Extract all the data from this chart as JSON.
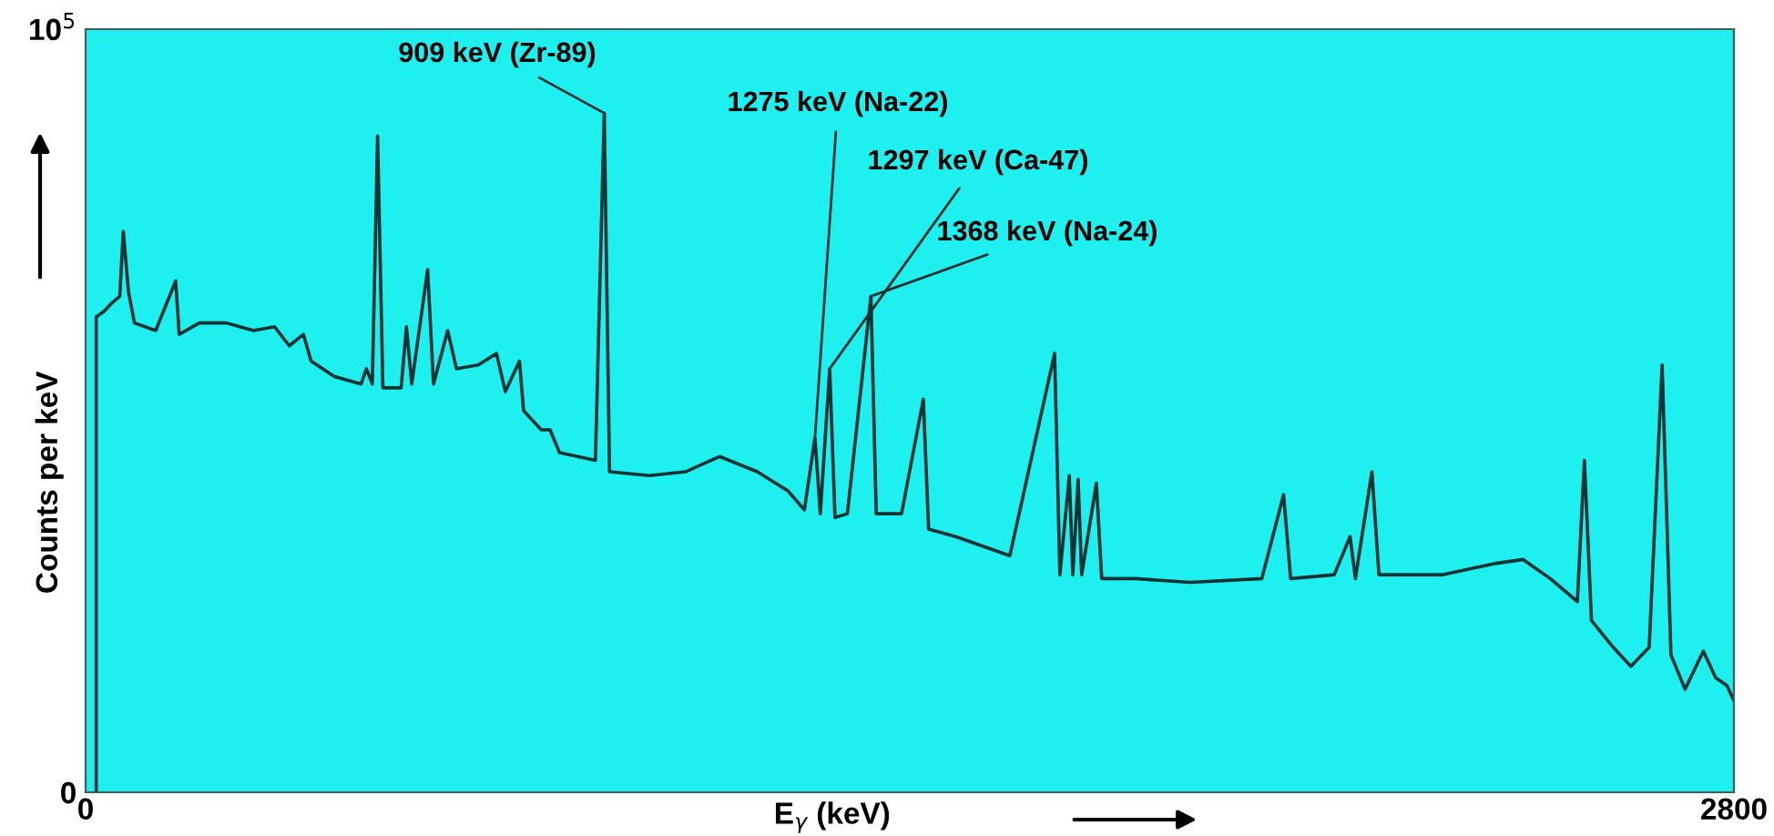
{
  "chart_data": {
    "type": "line",
    "xlabel": "E$_{γ}$ (keV)",
    "ylabel": "Counts per keV",
    "xlim": [
      0,
      2800
    ],
    "xticks": [
      0,
      2800
    ],
    "ylim": [
      0,
      100000
    ],
    "yticks": [
      0,
      {
        "value": 100000,
        "label": "10$^{5}$"
      }
    ],
    "grid": false,
    "legend": false,
    "marker": "none",
    "line_style": "solid",
    "x": [
      18,
      18,
      31,
      43,
      58,
      64,
      73,
      83,
      119,
      153,
      159,
      193,
      239,
      285,
      321,
      346,
      370,
      383,
      422,
      468,
      477,
      487,
      496,
      505,
      536,
      545,
      554,
      581,
      591,
      615,
      630,
      667,
      698,
      713,
      737,
      744,
      774,
      789,
      805,
      866,
      881,
      890,
      958,
      1019,
      1077,
      1141,
      1193,
      1221,
      1239,
      1248,
      1264,
      1273,
      1294,
      1334,
      1343,
      1386,
      1423,
      1432,
      1478,
      1570,
      1646,
      1655,
      1671,
      1677,
      1686,
      1692,
      1717,
      1726,
      1784,
      1876,
      1998,
      2035,
      2047,
      2121,
      2148,
      2157,
      2185,
      2197,
      2304,
      2396,
      2442,
      2488,
      2534,
      2546,
      2558,
      2595,
      2625,
      2656,
      2678,
      2693,
      2717,
      2748,
      2769,
      2788,
      2800
    ],
    "series": [
      {
        "color": "#103232",
        "values": [
          0,
          62300,
          63000,
          64000,
          65000,
          73500,
          65500,
          61500,
          60500,
          67000,
          60000,
          61500,
          61500,
          60500,
          61000,
          58500,
          60000,
          56500,
          54500,
          53500,
          55500,
          53500,
          86000,
          53000,
          53000,
          61000,
          53500,
          68500,
          53500,
          60500,
          55500,
          56000,
          57500,
          52500,
          56500,
          50000,
          47500,
          47500,
          44500,
          43500,
          89000,
          42000,
          41500,
          42000,
          44000,
          42000,
          39500,
          37000,
          46500,
          36500,
          55500,
          36000,
          36500,
          65000,
          36500,
          36500,
          51500,
          34500,
          33500,
          31000,
          57500,
          28500,
          41500,
          28500,
          41000,
          28500,
          40500,
          28000,
          28000,
          27500,
          28000,
          39000,
          28000,
          28500,
          33500,
          28000,
          42000,
          28500,
          28500,
          30000,
          30500,
          28000,
          25000,
          43500,
          22500,
          19000,
          16500,
          19000,
          56000,
          18000,
          13500,
          18500,
          15000,
          14000,
          12000
        ]
      }
    ],
    "annotations": [
      {
        "text": "909 keV (Zr-89)",
        "x": 881,
        "y": 89000
      },
      {
        "text": "1275 keV (Na-22)",
        "x": 1239,
        "y": 46500
      },
      {
        "text": "1297 keV (Ca-47)",
        "x": 1264,
        "y": 55500
      },
      {
        "text": "1368 keV (Na-24)",
        "x": 1334,
        "y": 65000
      }
    ]
  }
}
